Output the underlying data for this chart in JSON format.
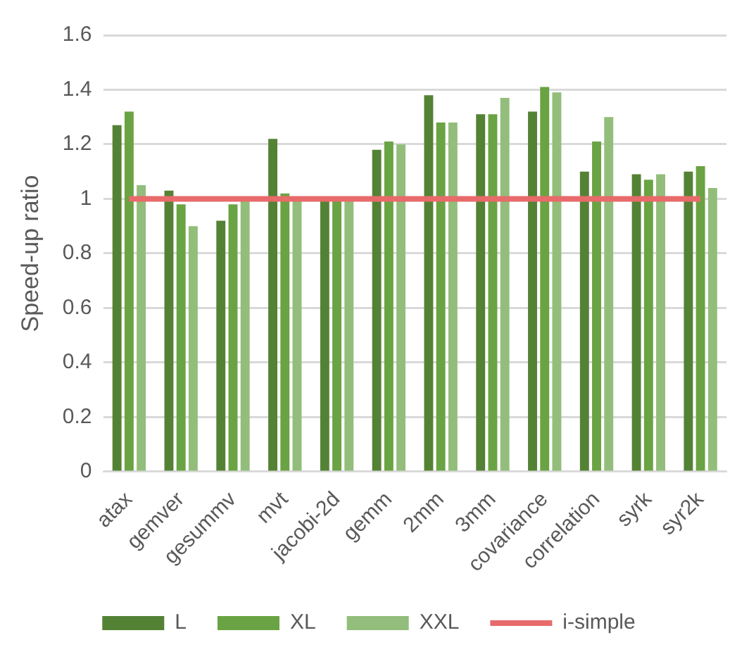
{
  "chart_data": {
    "type": "bar",
    "ylabel": "Speed-up ratio",
    "categories": [
      "atax",
      "gemver",
      "gesummv",
      "mvt",
      "jacobi-2d",
      "gemm",
      "2mm",
      "3mm",
      "covariance",
      "correlation",
      "syrk",
      "syr2k"
    ],
    "series": [
      {
        "name": "L",
        "color": "#548235",
        "values": [
          1.27,
          1.03,
          0.92,
          1.22,
          1.0,
          1.18,
          1.38,
          1.31,
          1.32,
          1.1,
          1.09,
          1.1
        ]
      },
      {
        "name": "XL",
        "color": "#6aa343",
        "values": [
          1.32,
          0.98,
          0.98,
          1.02,
          1.0,
          1.21,
          1.28,
          1.31,
          1.41,
          1.21,
          1.07,
          1.12
        ]
      },
      {
        "name": "XXL",
        "color": "#93bd7b",
        "values": [
          1.05,
          0.9,
          1.0,
          1.0,
          1.0,
          1.2,
          1.28,
          1.37,
          1.39,
          1.3,
          1.09,
          1.04
        ]
      },
      {
        "name": "i-simple",
        "type": "line",
        "color": "#e86a6a",
        "values": [
          1,
          1,
          1,
          1,
          1,
          1,
          1,
          1,
          1,
          1,
          1,
          1
        ]
      }
    ],
    "ylim": [
      0,
      1.6
    ],
    "yticks": [
      0,
      0.2,
      0.4,
      0.6,
      0.8,
      1,
      1.2,
      1.4,
      1.6
    ],
    "grid": "y",
    "legend": "bottom",
    "marker": "none"
  }
}
